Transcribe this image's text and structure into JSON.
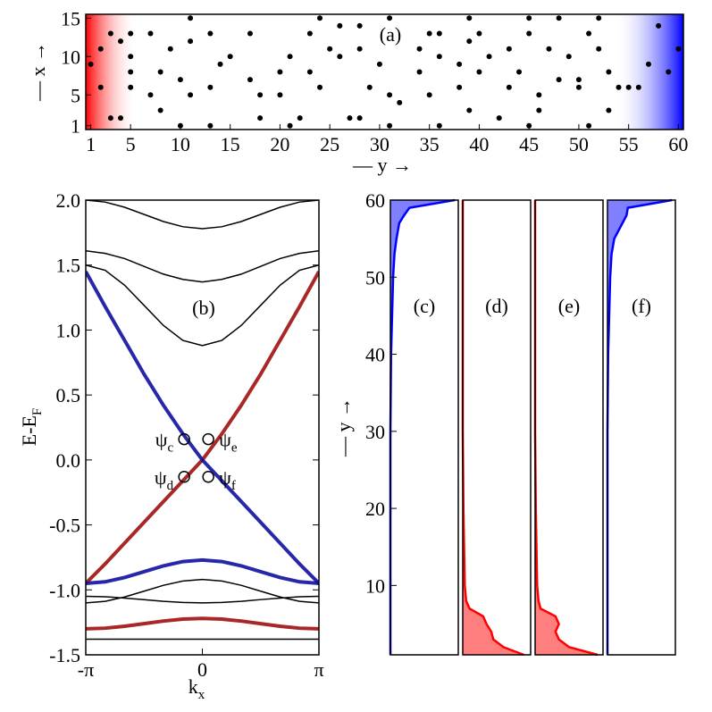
{
  "chart_data": [
    {
      "type": "scatter",
      "label": "(a)",
      "xlabel": "— y →",
      "ylabel": "— x →",
      "x": [
        1,
        2,
        2,
        3,
        3,
        4,
        4,
        5,
        5,
        5,
        5,
        7,
        7,
        8,
        8,
        9,
        10,
        10,
        11,
        11,
        11,
        13,
        13,
        13,
        14,
        15,
        17,
        17,
        18,
        18,
        20,
        20,
        21,
        21,
        22,
        23,
        23,
        24,
        24,
        25,
        26,
        26,
        27,
        28,
        28,
        28,
        29,
        30,
        31,
        31,
        31,
        32,
        34,
        34,
        35,
        35,
        36,
        36,
        36,
        38,
        38,
        39,
        39,
        39,
        40,
        40,
        41,
        42,
        43,
        43,
        44,
        45,
        45,
        45,
        46,
        46,
        47,
        48,
        48,
        49,
        50,
        50,
        51,
        51,
        52,
        52,
        53,
        53,
        54,
        55,
        56,
        57,
        58,
        59,
        60
      ],
      "values": [
        9,
        11,
        6,
        13,
        2,
        2,
        12,
        13,
        8,
        6,
        10,
        13,
        5,
        8,
        3,
        11,
        7,
        1,
        12,
        15,
        5,
        13,
        6,
        1,
        9,
        10,
        13,
        7,
        5,
        2,
        8,
        5,
        1,
        10,
        2,
        13,
        8,
        15,
        6,
        11,
        14,
        10,
        2,
        2,
        14,
        11,
        6,
        9,
        1,
        15,
        5,
        4,
        8,
        11,
        5,
        13,
        13,
        10,
        1,
        9,
        6,
        15,
        3,
        12,
        13,
        8,
        10,
        2,
        6,
        11,
        8,
        15,
        1,
        13,
        5,
        3,
        11,
        15,
        7,
        10,
        6,
        7,
        13,
        1,
        11,
        15,
        3,
        8,
        6,
        6,
        6,
        9,
        14,
        8,
        11
      ],
      "color": "#000000",
      "gradient_colors": [
        "#ff0000",
        "#0000ff"
      ],
      "xlim": [
        0.5,
        60.5
      ],
      "ylim": [
        0.5,
        15.5
      ],
      "xticks": [
        1,
        5,
        10,
        15,
        20,
        25,
        30,
        35,
        40,
        45,
        50,
        55,
        60
      ],
      "yticks": [
        1,
        5,
        10,
        15
      ]
    },
    {
      "type": "line",
      "label": "(b)",
      "xlabel": {
        "base": "k",
        "sub": "x"
      },
      "ylabel": {
        "base": "E-E",
        "sub": "F"
      },
      "x": [
        -3.14159,
        -2.61799,
        -2.0944,
        -1.5708,
        -1.0472,
        -0.5236,
        0,
        0.5236,
        1.0472,
        1.5708,
        2.0944,
        2.61799,
        3.14159
      ],
      "xlim": [
        -3.14159,
        3.14159
      ],
      "xticks": [
        {
          "value": -3.14159,
          "label": "-π"
        },
        0,
        {
          "value": 3.14159,
          "label": "π"
        }
      ],
      "ylim": [
        -1.5,
        2
      ],
      "yticks": [
        -1.5,
        {
          "value": -1,
          "label": "-1.0"
        },
        -0.5,
        {
          "value": 0,
          "label": "0.0"
        },
        0.5,
        {
          "value": 1,
          "label": "1.0"
        },
        1.5,
        {
          "value": 2,
          "label": "2.0"
        }
      ],
      "series": [
        {
          "color": "#a01010",
          "values": [
            -0.95,
            -0.8,
            -0.64,
            -0.48,
            -0.32,
            -0.16,
            0,
            0.2,
            0.42,
            0.66,
            0.92,
            1.18,
            1.45
          ]
        },
        {
          "color": "#1010a0",
          "values": [
            1.45,
            1.18,
            0.92,
            0.66,
            0.42,
            0.2,
            0,
            -0.16,
            -0.32,
            -0.48,
            -0.64,
            -0.8,
            -0.95
          ]
        },
        {
          "color": "#000000",
          "values": [
            1.5,
            1.46,
            1.345,
            1.19,
            1.035,
            0.92,
            0.88,
            0.92,
            1.035,
            1.19,
            1.345,
            1.46,
            1.5
          ]
        },
        {
          "color": "#000000",
          "values": [
            1.61,
            1.59,
            1.55,
            1.49,
            1.43,
            1.39,
            1.37,
            1.39,
            1.43,
            1.49,
            1.55,
            1.59,
            1.61
          ]
        },
        {
          "color": "#000000",
          "values": [
            2,
            1.985,
            1.945,
            1.89,
            1.835,
            1.795,
            1.78,
            1.795,
            1.835,
            1.89,
            1.945,
            1.985,
            2
          ]
        },
        {
          "color": "#1010a0",
          "values": [
            -0.95,
            -0.938,
            -0.905,
            -0.86,
            -0.815,
            -0.782,
            -0.77,
            -0.782,
            -0.815,
            -0.86,
            -0.905,
            -0.938,
            -0.95
          ]
        },
        {
          "color": "#000000",
          "values": [
            -1.1,
            -1.088,
            -1.055,
            -1.01,
            -0.965,
            -0.932,
            -0.92,
            -0.932,
            -0.965,
            -1.01,
            -1.055,
            -1.088,
            -1.1
          ]
        },
        {
          "color": "#000000",
          "values": [
            -1.05,
            -1.053,
            -1.063,
            -1.075,
            -1.088,
            -1.097,
            -1.1,
            -1.097,
            -1.088,
            -1.075,
            -1.063,
            -1.053,
            -1.05
          ]
        },
        {
          "color": "#a01010",
          "values": [
            -1.3,
            -1.295,
            -1.28,
            -1.26,
            -1.24,
            -1.225,
            -1.22,
            -1.225,
            -1.24,
            -1.26,
            -1.28,
            -1.295,
            -1.3
          ]
        },
        {
          "color": "#000000",
          "values": [
            -1.38,
            -1.38,
            -1.38,
            -1.38,
            -1.38,
            -1.38,
            -1.38,
            -1.38,
            -1.38,
            -1.38,
            -1.38,
            -1.38,
            -1.38
          ]
        }
      ],
      "annotations": [
        {
          "x": -0.49,
          "y": 0.16,
          "base": "ψ",
          "sub": "c"
        },
        {
          "x": 0.16,
          "y": 0.16,
          "base": "ψ",
          "sub": "e"
        },
        {
          "x": -0.49,
          "y": -0.13,
          "base": "ψ",
          "sub": "d"
        },
        {
          "x": 0.16,
          "y": -0.13,
          "base": "ψ",
          "sub": "f"
        }
      ]
    },
    {
      "type": "area",
      "label": "(c)",
      "ylabel": "— y →",
      "color": "#0000ff",
      "y": [
        1,
        2,
        3,
        4,
        5,
        6,
        7,
        8,
        10,
        15,
        20,
        30,
        40,
        50,
        53,
        55,
        57,
        58,
        59,
        60
      ],
      "values": [
        0,
        0,
        0,
        0,
        0,
        0,
        0,
        0,
        0,
        0,
        0,
        0,
        0.01,
        0.04,
        0.06,
        0.09,
        0.13,
        0.2,
        0.28,
        0.95
      ],
      "xlim": [
        0,
        1
      ],
      "ylim": [
        1,
        60
      ],
      "yticks": [
        10,
        20,
        30,
        40,
        50,
        60
      ]
    },
    {
      "type": "area",
      "label": "(d)",
      "color": "#ff0000",
      "y": [
        1,
        2,
        3,
        4,
        5,
        6,
        7,
        8,
        10,
        15,
        20,
        30,
        40,
        50,
        53,
        55,
        57,
        58,
        59,
        60
      ],
      "values": [
        0.9,
        0.6,
        0.45,
        0.42,
        0.35,
        0.3,
        0.1,
        0.05,
        0.03,
        0.02,
        0.01,
        0,
        0,
        0,
        0,
        0,
        0,
        0,
        0,
        0
      ],
      "xlim": [
        0,
        1
      ],
      "ylim": [
        1,
        60
      ]
    },
    {
      "type": "area",
      "label": "(e)",
      "color": "#ff0000",
      "y": [
        1,
        2,
        3,
        4,
        5,
        6,
        7,
        8,
        10,
        15,
        20,
        30,
        40,
        50,
        53,
        55,
        57,
        58,
        59,
        60
      ],
      "values": [
        0.92,
        0.5,
        0.35,
        0.3,
        0.35,
        0.3,
        0.08,
        0.05,
        0.03,
        0.02,
        0.01,
        0,
        0,
        0,
        0,
        0,
        0,
        0,
        0,
        0
      ],
      "xlim": [
        0,
        1
      ],
      "ylim": [
        1,
        60
      ]
    },
    {
      "type": "area",
      "label": "(f)",
      "color": "#0000ff",
      "y": [
        1,
        2,
        3,
        4,
        5,
        6,
        7,
        8,
        10,
        15,
        20,
        30,
        40,
        50,
        53,
        55,
        57,
        58,
        59,
        60
      ],
      "values": [
        0,
        0,
        0,
        0,
        0,
        0,
        0,
        0,
        0,
        0,
        0,
        0,
        0.01,
        0.04,
        0.06,
        0.1,
        0.22,
        0.28,
        0.3,
        0.95
      ],
      "xlim": [
        0,
        1
      ],
      "ylim": [
        1,
        60
      ]
    }
  ]
}
